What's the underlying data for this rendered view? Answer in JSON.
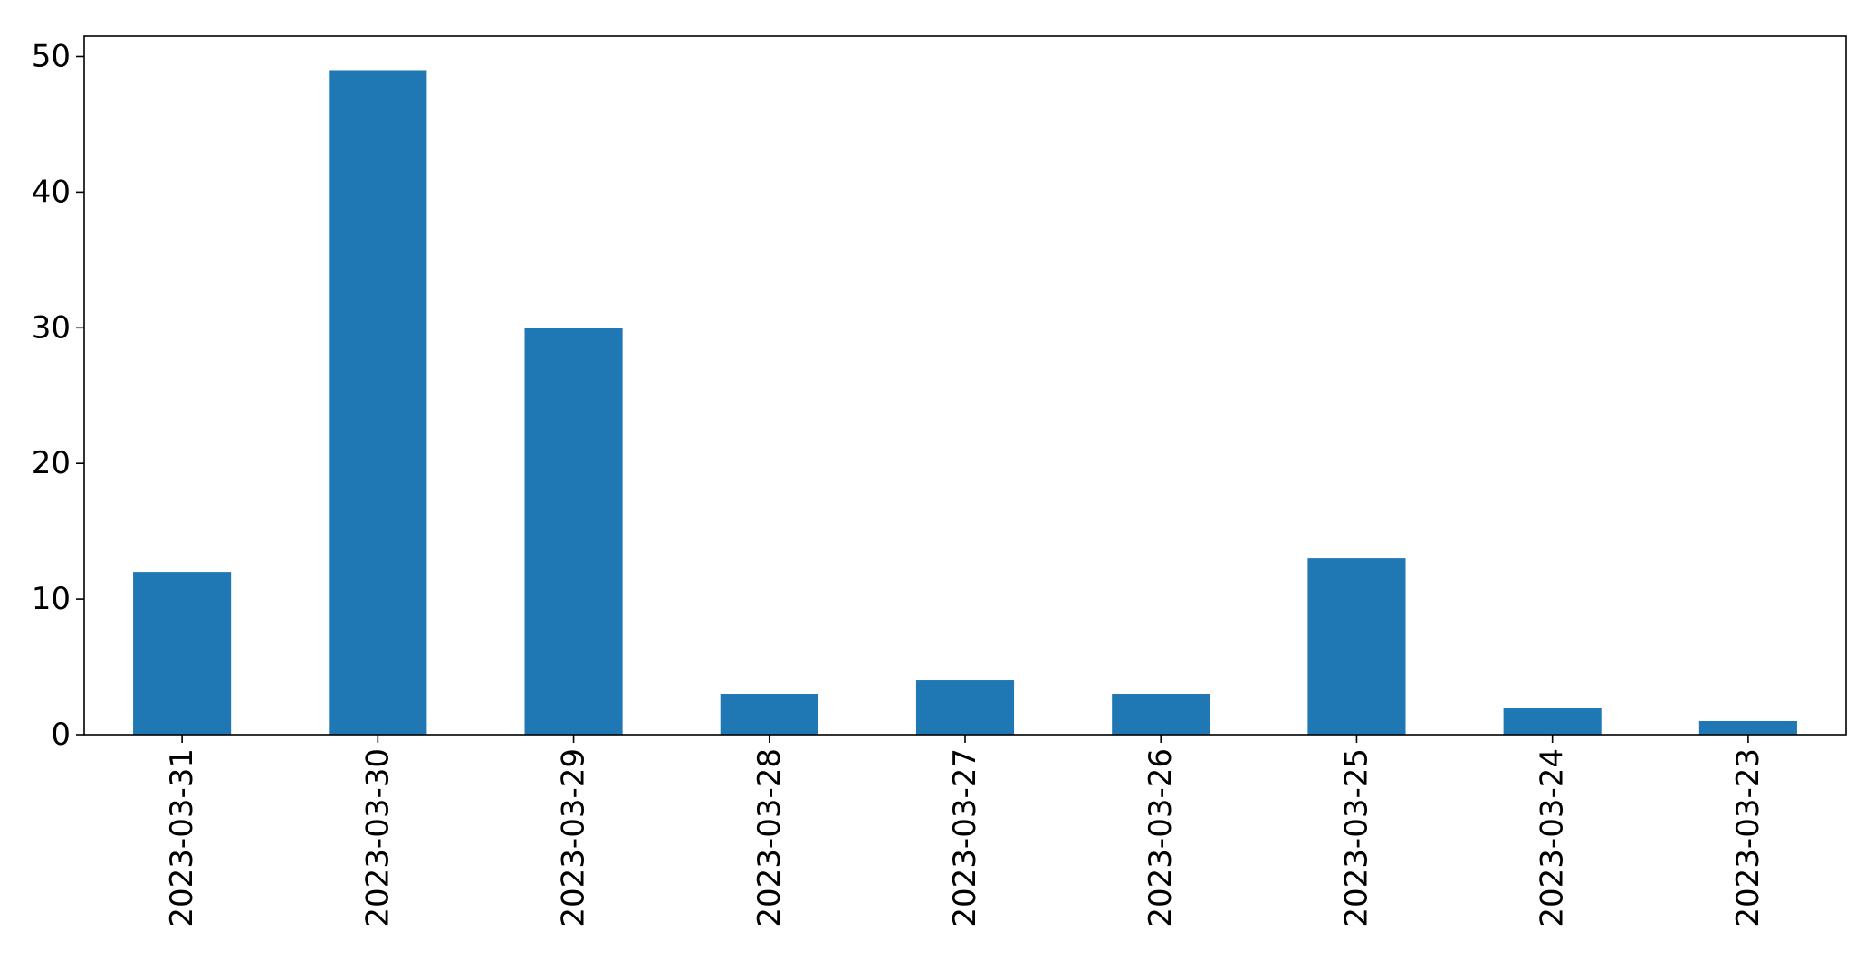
{
  "chart_data": {
    "type": "bar",
    "title": "",
    "xlabel": "",
    "ylabel": "",
    "categories": [
      "2023-03-31",
      "2023-03-30",
      "2023-03-29",
      "2023-03-28",
      "2023-03-27",
      "2023-03-26",
      "2023-03-25",
      "2023-03-24",
      "2023-03-23"
    ],
    "values": [
      12,
      49,
      30,
      3,
      4,
      3,
      13,
      2,
      1
    ],
    "ylim": [
      0,
      51.5
    ],
    "yticks": [
      "0",
      "10",
      "20",
      "30",
      "40",
      "50"
    ],
    "grid": false,
    "legend": "none",
    "bar_color": "#1f77b4",
    "axis_color": "#000000"
  }
}
